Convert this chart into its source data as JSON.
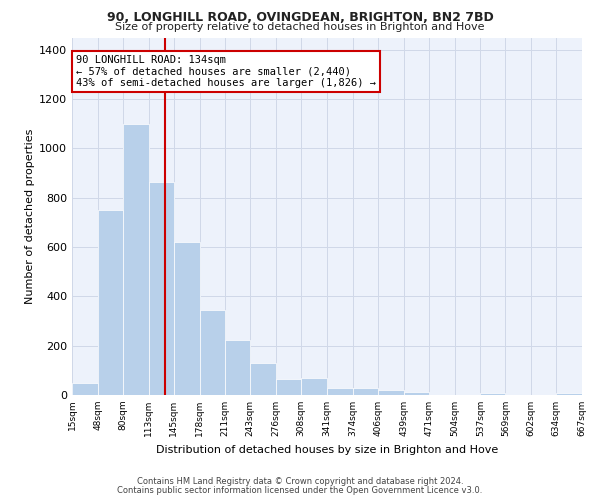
{
  "title1": "90, LONGHILL ROAD, OVINGDEAN, BRIGHTON, BN2 7BD",
  "title2": "Size of property relative to detached houses in Brighton and Hove",
  "xlabel": "Distribution of detached houses by size in Brighton and Hove",
  "ylabel": "Number of detached properties",
  "footer1": "Contains HM Land Registry data © Crown copyright and database right 2024.",
  "footer2": "Contains public sector information licensed under the Open Government Licence v3.0.",
  "annotation_title": "90 LONGHILL ROAD: 134sqm",
  "annotation_line1": "← 57% of detached houses are smaller (2,440)",
  "annotation_line2": "43% of semi-detached houses are larger (1,826) →",
  "property_size": 134,
  "bar_color": "#b8d0ea",
  "grid_color": "#d0d8e8",
  "vline_color": "#cc0000",
  "annotation_box_color": "#cc0000",
  "bg_color": "#edf2fb",
  "bins": [
    15,
    48,
    80,
    113,
    145,
    178,
    211,
    243,
    276,
    308,
    341,
    374,
    406,
    439,
    471,
    504,
    537,
    569,
    602,
    634,
    667
  ],
  "counts": [
    50,
    750,
    1100,
    865,
    620,
    345,
    225,
    130,
    65,
    70,
    30,
    30,
    20,
    12,
    0,
    0,
    10,
    0,
    0,
    10
  ],
  "ylim": [
    0,
    1450
  ],
  "yticks": [
    0,
    200,
    400,
    600,
    800,
    1000,
    1200,
    1400
  ]
}
